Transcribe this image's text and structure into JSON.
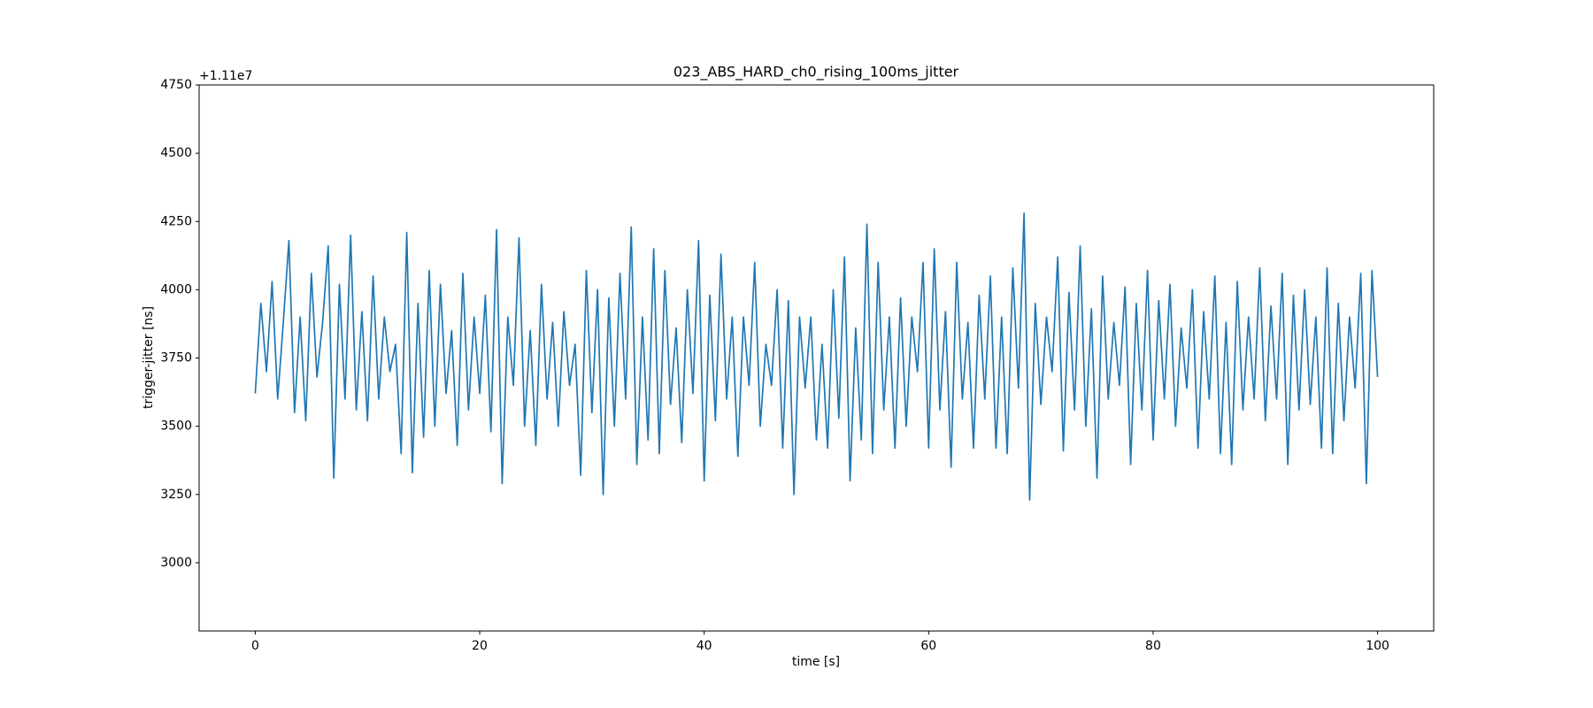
{
  "chart_data": {
    "type": "line",
    "title": "023_ABS_HARD_ch0_rising_100ms_jitter",
    "x_label": "time [s]",
    "y_label": "trigger-jitter [ns]",
    "y_offset_label": "+1.11e7",
    "xlim": [
      -5,
      105
    ],
    "ylim": [
      2750,
      4750
    ],
    "xticks": [
      0,
      20,
      40,
      60,
      80,
      100
    ],
    "yticks": [
      3000,
      3250,
      3500,
      3750,
      4000,
      4250,
      4500,
      4750
    ],
    "grid": false,
    "x": [
      0,
      0.5,
      1,
      1.5,
      2,
      2.5,
      3,
      3.5,
      4,
      4.5,
      5,
      5.5,
      6,
      6.5,
      7,
      7.5,
      8,
      8.5,
      9,
      9.5,
      10,
      10.5,
      11,
      11.5,
      12,
      12.5,
      13,
      13.5,
      14,
      14.5,
      15,
      15.5,
      16,
      16.5,
      17,
      17.5,
      18,
      18.5,
      19,
      19.5,
      20,
      20.5,
      21,
      21.5,
      22,
      22.5,
      23,
      23.5,
      24,
      24.5,
      25,
      25.5,
      26,
      26.5,
      27,
      27.5,
      28,
      28.5,
      29,
      29.5,
      30,
      30.5,
      31,
      31.5,
      32,
      32.5,
      33,
      33.5,
      34,
      34.5,
      35,
      35.5,
      36,
      36.5,
      37,
      37.5,
      38,
      38.5,
      39,
      39.5,
      40,
      40.5,
      41,
      41.5,
      42,
      42.5,
      43,
      43.5,
      44,
      44.5,
      45,
      45.5,
      46,
      46.5,
      47,
      47.5,
      48,
      48.5,
      49,
      49.5,
      50,
      50.5,
      51,
      51.5,
      52,
      52.5,
      53,
      53.5,
      54,
      54.5,
      55,
      55.5,
      56,
      56.5,
      57,
      57.5,
      58,
      58.5,
      59,
      59.5,
      60,
      60.5,
      61,
      61.5,
      62,
      62.5,
      63,
      63.5,
      64,
      64.5,
      65,
      65.5,
      66,
      66.5,
      67,
      67.5,
      68,
      68.5,
      69,
      69.5,
      70,
      70.5,
      71,
      71.5,
      72,
      72.5,
      73,
      73.5,
      74,
      74.5,
      75,
      75.5,
      76,
      76.5,
      77,
      77.5,
      78,
      78.5,
      79,
      79.5,
      80,
      80.5,
      81,
      81.5,
      82,
      82.5,
      83,
      83.5,
      84,
      84.5,
      85,
      85.5,
      86,
      86.5,
      87,
      87.5,
      88,
      88.5,
      89,
      89.5,
      90,
      90.5,
      91,
      91.5,
      92,
      92.5,
      93,
      93.5,
      94,
      94.5,
      95,
      95.5,
      96,
      96.5,
      97,
      97.5,
      98,
      98.5,
      99,
      99.5,
      100
    ],
    "series": [
      {
        "color": "#1f77b4",
        "values": [
          3620,
          3950,
          3700,
          4030,
          3600,
          3880,
          4180,
          3550,
          3900,
          3520,
          4060,
          3680,
          3880,
          4160,
          3310,
          4020,
          3600,
          4200,
          3560,
          3920,
          3520,
          4050,
          3600,
          3900,
          3700,
          3800,
          3400,
          4210,
          3330,
          3950,
          3460,
          4070,
          3500,
          4020,
          3620,
          3850,
          3430,
          4060,
          3560,
          3900,
          3620,
          3980,
          3480,
          4220,
          3290,
          3900,
          3650,
          4190,
          3500,
          3850,
          3430,
          4020,
          3600,
          3880,
          3500,
          3920,
          3650,
          3800,
          3320,
          4070,
          3550,
          4000,
          3250,
          3970,
          3500,
          4060,
          3600,
          4230,
          3360,
          3900,
          3450,
          4150,
          3400,
          4070,
          3580,
          3860,
          3440,
          4000,
          3620,
          4180,
          3300,
          3980,
          3520,
          4130,
          3600,
          3900,
          3390,
          3900,
          3650,
          4100,
          3500,
          3800,
          3650,
          4000,
          3420,
          3960,
          3250,
          3900,
          3640,
          3900,
          3450,
          3800,
          3420,
          4000,
          3530,
          4120,
          3300,
          3860,
          3450,
          4240,
          3400,
          4100,
          3560,
          3900,
          3420,
          3970,
          3500,
          3900,
          3700,
          4100,
          3420,
          4150,
          3560,
          3920,
          3350,
          4100,
          3600,
          3880,
          3420,
          3980,
          3600,
          4050,
          3420,
          3900,
          3400,
          4080,
          3640,
          4280,
          3230,
          3950,
          3580,
          3900,
          3700,
          4120,
          3410,
          3990,
          3560,
          4160,
          3500,
          3930,
          3310,
          4050,
          3600,
          3880,
          3650,
          4010,
          3360,
          3950,
          3560,
          4070,
          3450,
          3960,
          3600,
          4020,
          3500,
          3860,
          3640,
          4000,
          3420,
          3920,
          3600,
          4050,
          3400,
          3880,
          3360,
          4030,
          3560,
          3900,
          3600,
          4080,
          3520,
          3940,
          3600,
          4060,
          3360,
          3980,
          3560,
          4000,
          3580,
          3900,
          3420,
          4080,
          3400,
          3950,
          3520,
          3900,
          3640,
          4060,
          3290,
          4070,
          3680
        ]
      }
    ]
  }
}
